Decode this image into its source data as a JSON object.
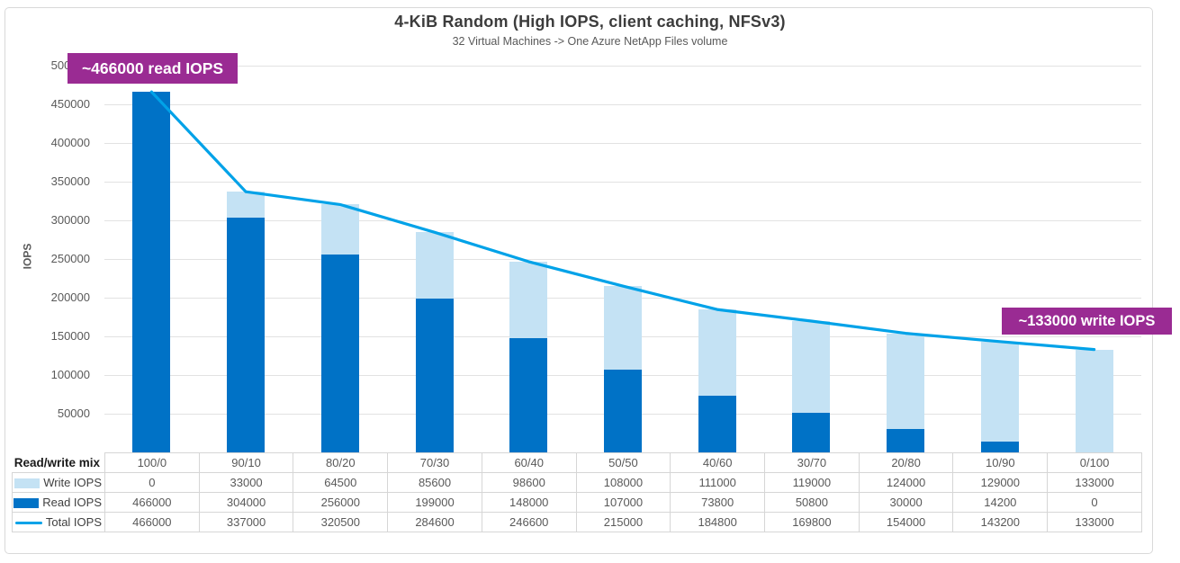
{
  "figure": {
    "title": "4-KiB Random (High IOPS, client caching, NFSv3)",
    "subtitle": "32 Virtual Machines -> One Azure NetApp Files volume",
    "ylabel": "IOPS"
  },
  "annotations": {
    "read_callout": "~466000 read IOPS",
    "write_callout": "~133000 write IOPS"
  },
  "colors": {
    "read_bar": "#0072C6",
    "write_bar": "#C4E2F4",
    "total_line": "#00A2E8",
    "callout_bg": "#9A2B93",
    "gridline": "#E2E2E2",
    "table_border": "#D6D6D6"
  },
  "table": {
    "corner_label": "Read/write mix"
  },
  "chart_data": {
    "type": "bar",
    "subtype": "stacked-bar-with-line-overlay",
    "title": "4-KiB Random (High IOPS, client caching, NFSv3)",
    "subtitle": "32 Virtual Machines -> One Azure NetApp Files volume",
    "xlabel": "Read/write mix",
    "ylabel": "IOPS",
    "ylim": [
      0,
      500000
    ],
    "yticks": [
      50000,
      100000,
      150000,
      200000,
      250000,
      300000,
      350000,
      400000,
      450000,
      500000
    ],
    "grid": "horizontal",
    "legend_position": "table-left-column",
    "categories": [
      "100/0",
      "90/10",
      "80/20",
      "70/30",
      "60/40",
      "50/50",
      "40/60",
      "30/70",
      "20/80",
      "10/90",
      "0/100"
    ],
    "series": [
      {
        "name": "Write IOPS",
        "type": "bar-stack-top",
        "color": "#C4E2F4",
        "values": [
          0,
          33000,
          64500,
          85600,
          98600,
          108000,
          111000,
          119000,
          124000,
          129000,
          133000
        ]
      },
      {
        "name": "Read IOPS",
        "type": "bar-stack-bottom",
        "color": "#0072C6",
        "values": [
          466000,
          304000,
          256000,
          199000,
          148000,
          107000,
          73800,
          50800,
          30000,
          14200,
          0
        ]
      },
      {
        "name": "Total IOPS",
        "type": "line",
        "color": "#00A2E8",
        "values": [
          466000,
          337000,
          320500,
          284600,
          246600,
          215000,
          184800,
          169800,
          154000,
          143200,
          133000
        ]
      }
    ]
  }
}
